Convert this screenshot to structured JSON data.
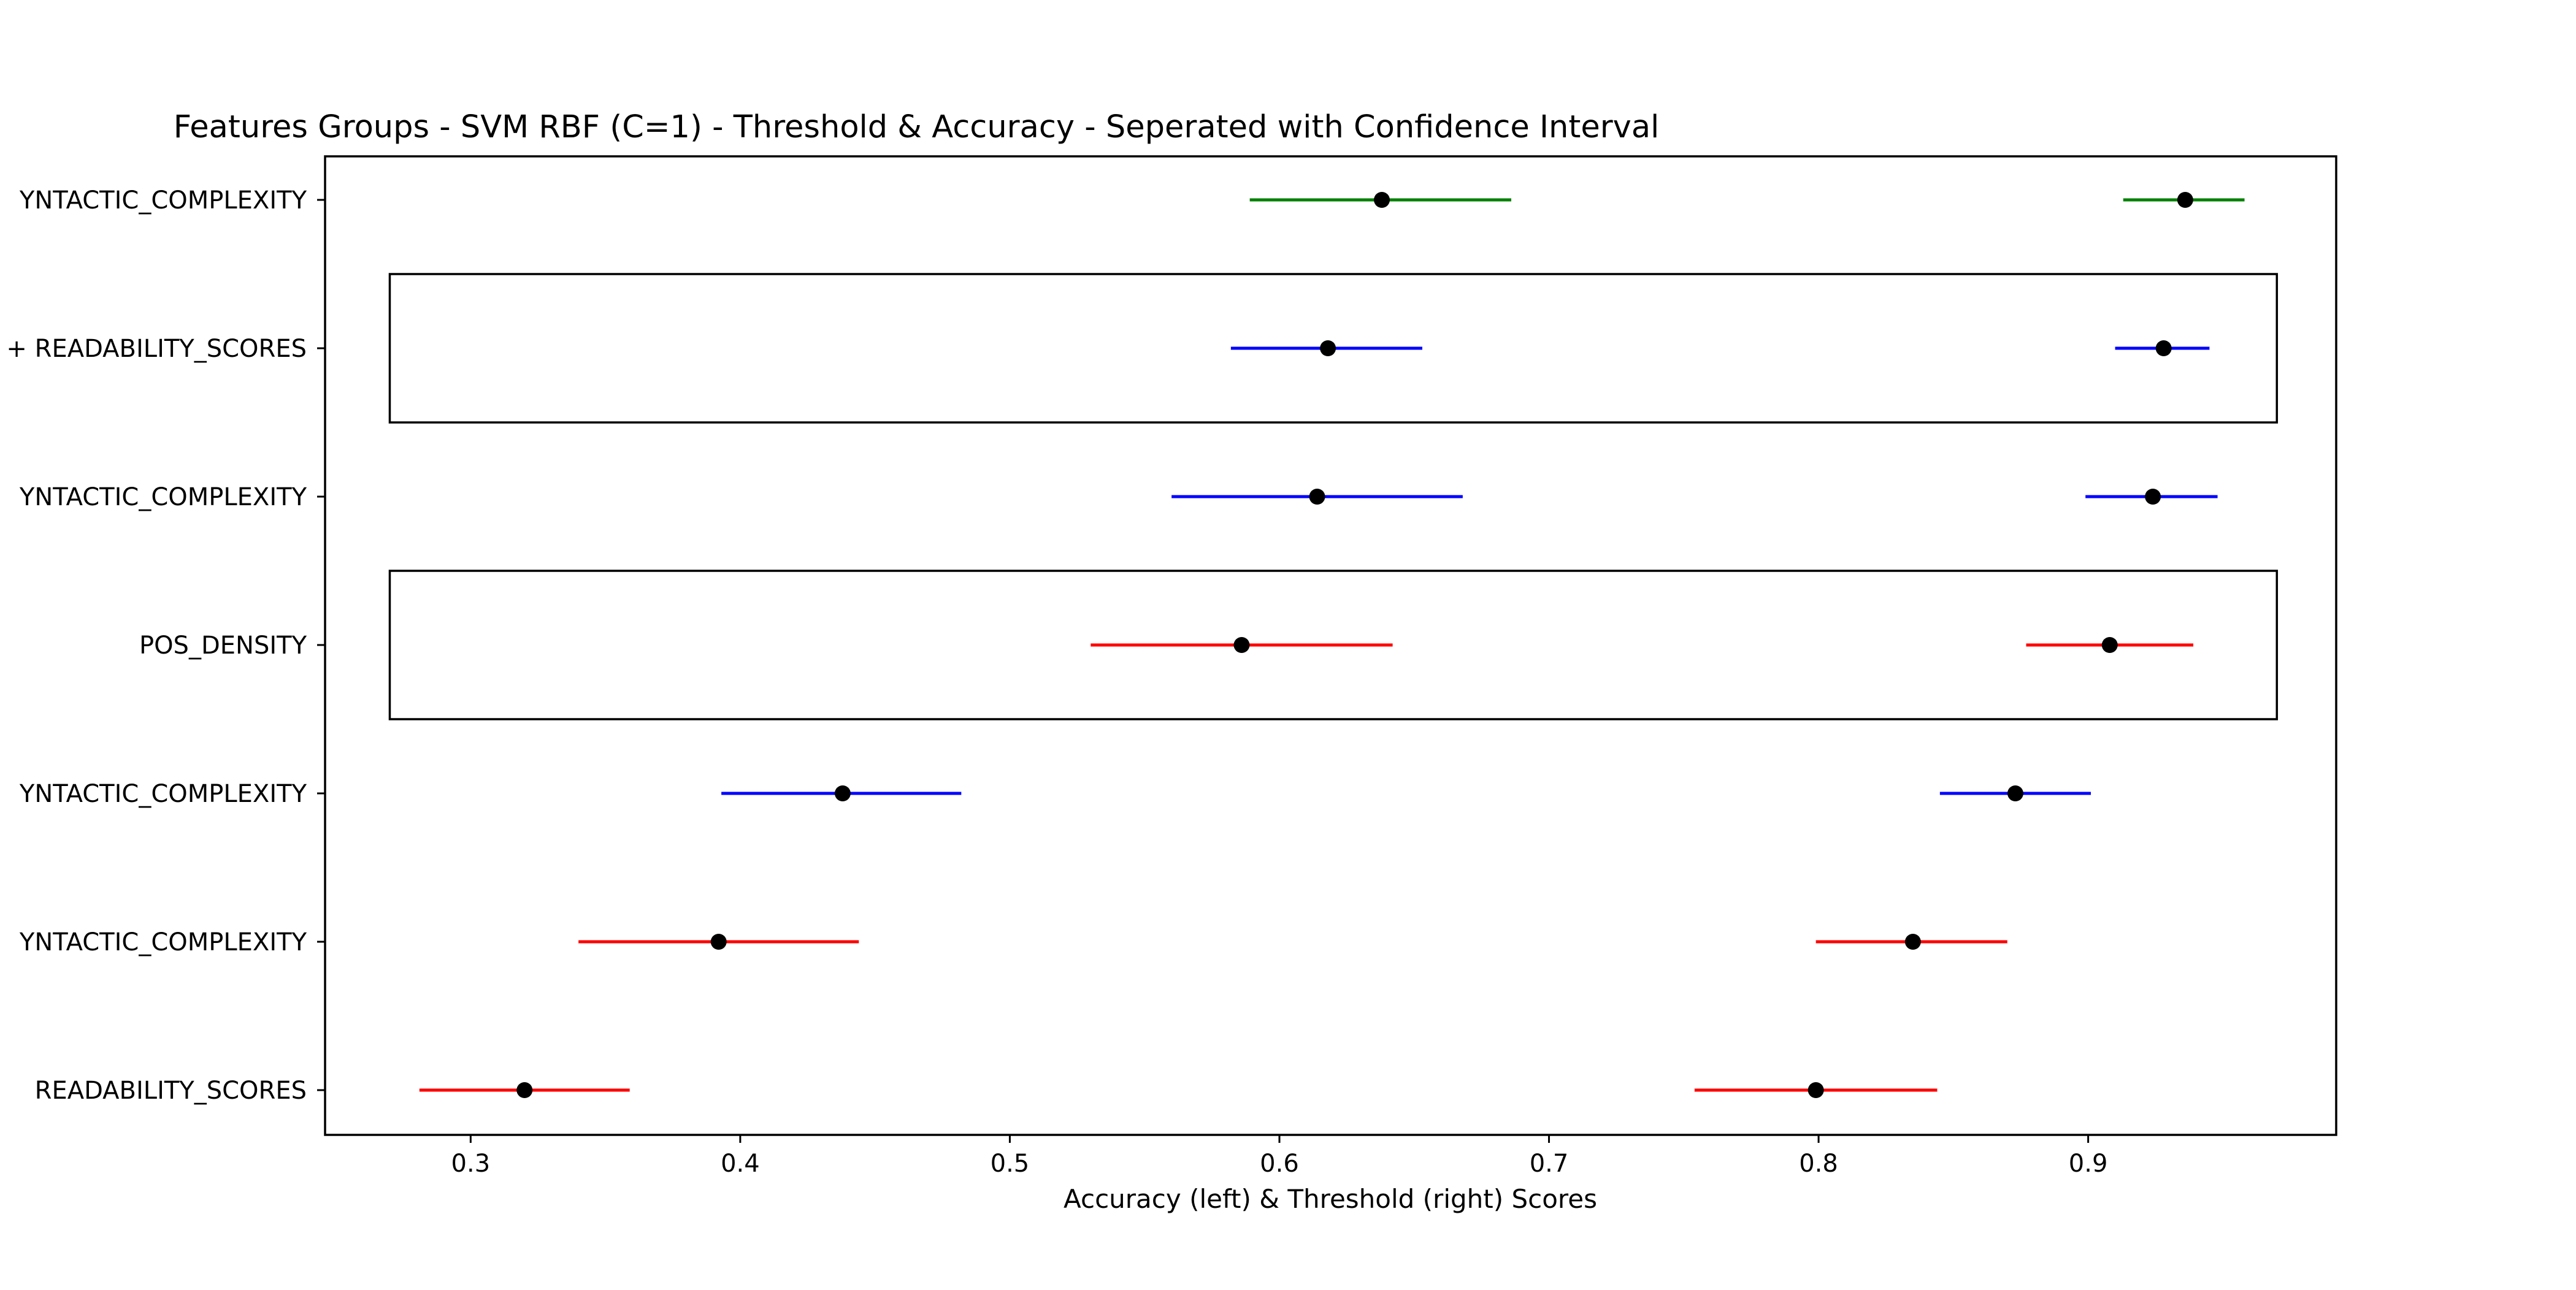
{
  "chart_data": {
    "type": "scatter",
    "title": "Features Groups - SVM RBF (C=1) - Threshold & Accuracy - Seperated with Confidence Interval",
    "xlabel": "Accuracy (left) & Threshold (right) Scores",
    "ylabel": "",
    "xlim": [
      0.246,
      0.992
    ],
    "x_ticks": [
      0.3,
      0.4,
      0.5,
      0.6,
      0.7,
      0.8,
      0.9
    ],
    "x_tick_labels": [
      "0.3",
      "0.4",
      "0.5",
      "0.6",
      "0.7",
      "0.8",
      "0.9"
    ],
    "grid": false,
    "categories": [
      "YNTACTIC_COMPLEXITY",
      "+ READABILITY_SCORES",
      "YNTACTIC_COMPLEXITY",
      "POS_DENSITY",
      "YNTACTIC_COMPLEXITY",
      "YNTACTIC_COMPLEXITY",
      "READABILITY_SCORES"
    ],
    "groups": [
      {
        "color": "#008000",
        "accuracy": {
          "value": 0.638,
          "low": 0.589,
          "high": 0.686
        },
        "threshold": {
          "value": 0.936,
          "low": 0.913,
          "high": 0.958
        }
      },
      {
        "color": "#0000ff",
        "accuracy": {
          "value": 0.618,
          "low": 0.582,
          "high": 0.653
        },
        "threshold": {
          "value": 0.928,
          "low": 0.91,
          "high": 0.945
        },
        "highlighted": true
      },
      {
        "color": "#0000ff",
        "accuracy": {
          "value": 0.614,
          "low": 0.56,
          "high": 0.668
        },
        "threshold": {
          "value": 0.924,
          "low": 0.899,
          "high": 0.948
        }
      },
      {
        "color": "#ff0000",
        "accuracy": {
          "value": 0.586,
          "low": 0.53,
          "high": 0.642
        },
        "threshold": {
          "value": 0.908,
          "low": 0.877,
          "high": 0.939
        },
        "highlighted": true
      },
      {
        "color": "#0000ff",
        "accuracy": {
          "value": 0.438,
          "low": 0.393,
          "high": 0.482
        },
        "threshold": {
          "value": 0.873,
          "low": 0.845,
          "high": 0.901
        }
      },
      {
        "color": "#ff0000",
        "accuracy": {
          "value": 0.392,
          "low": 0.34,
          "high": 0.444
        },
        "threshold": {
          "value": 0.835,
          "low": 0.799,
          "high": 0.87
        }
      },
      {
        "color": "#ff0000",
        "accuracy": {
          "value": 0.32,
          "low": 0.281,
          "high": 0.359
        },
        "threshold": {
          "value": 0.799,
          "low": 0.754,
          "high": 0.844
        }
      }
    ],
    "highlight_x_range": [
      0.27,
      0.97
    ],
    "point_color": "#000000"
  }
}
